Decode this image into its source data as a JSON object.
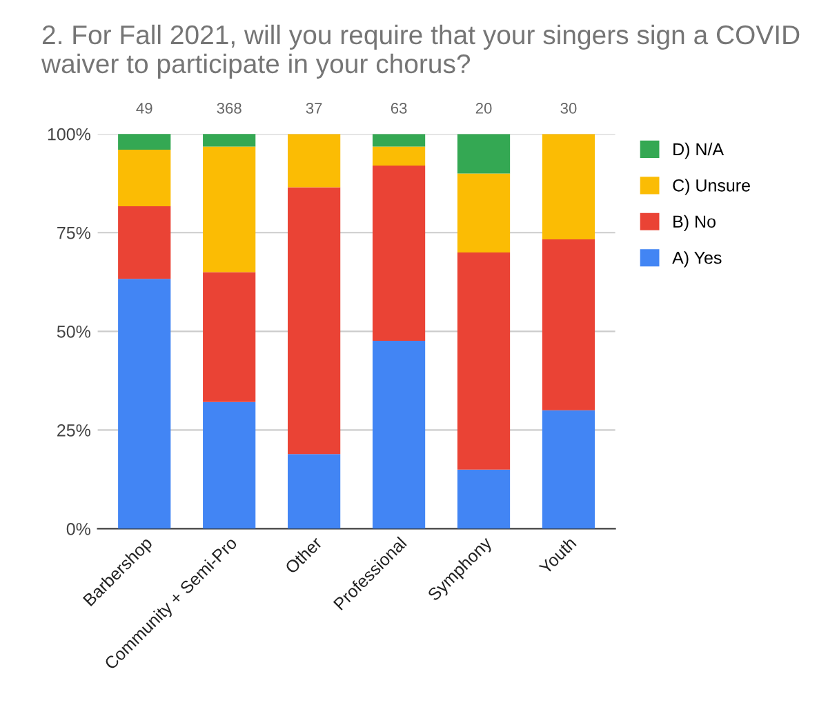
{
  "chart_data": {
    "type": "bar",
    "stacked": true,
    "title": "2. For Fall 2021, will you require that your singers sign a COVID waiver to participate in your chorus?",
    "categories": [
      "Barbershop",
      "Community + Semi-Pro",
      "Other",
      "Professional",
      "Symphony",
      "Youth"
    ],
    "series": [
      {
        "name": "A) Yes",
        "color": "#4285f4",
        "values": [
          63.3,
          32.1,
          18.9,
          47.6,
          15.0,
          30.0
        ]
      },
      {
        "name": "B) No",
        "color": "#ea4335",
        "values": [
          18.4,
          32.9,
          67.6,
          44.4,
          55.0,
          43.3
        ]
      },
      {
        "name": "C) Unsure",
        "color": "#fbbc04",
        "values": [
          14.3,
          31.8,
          13.5,
          4.8,
          20.0,
          26.7
        ]
      },
      {
        "name": "D) N/A",
        "color": "#34a853",
        "values": [
          4.1,
          3.3,
          0,
          3.2,
          10.0,
          0
        ]
      }
    ],
    "annotations": [
      {
        "text": "49",
        "x": "Barbershop",
        "y": 100
      },
      {
        "text": "368",
        "x": "Community + Semi-Pro",
        "y": 100
      },
      {
        "text": "37",
        "x": "Other",
        "y": 100
      },
      {
        "text": "63",
        "x": "Professional",
        "y": 100
      },
      {
        "text": "20",
        "x": "Symphony",
        "y": 100
      },
      {
        "text": "30",
        "x": "Youth",
        "y": 100
      }
    ],
    "ylim": [
      0,
      100
    ],
    "yticks": [
      {
        "value": 0,
        "label": "0%"
      },
      {
        "value": 25,
        "label": "25%"
      },
      {
        "value": 50,
        "label": "50%"
      },
      {
        "value": 75,
        "label": "75%"
      },
      {
        "value": 100,
        "label": "100%"
      }
    ],
    "grid": "y",
    "legend": "right"
  }
}
